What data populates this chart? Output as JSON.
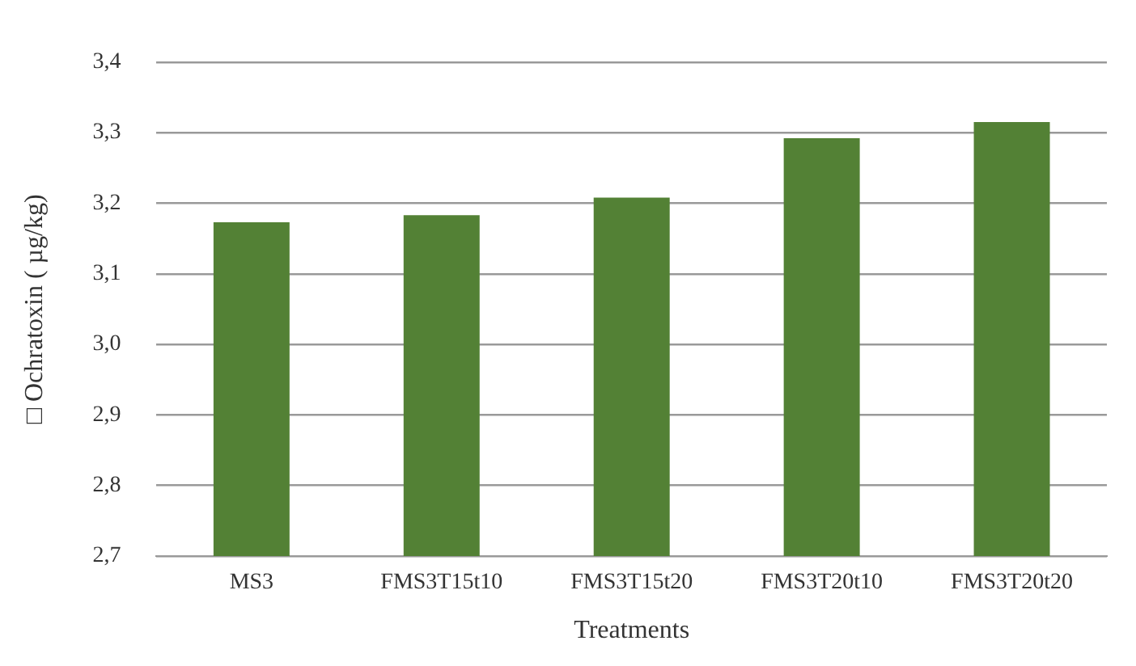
{
  "chart_data": {
    "type": "bar",
    "xlabel": "Treatments",
    "ylabel": "□ Ochratoxin ( µg/kg)",
    "categories": [
      "MS3",
      "FMS3T15t10",
      "FMS3T15t20",
      "FMS3T20t10",
      "FMS3T20t20"
    ],
    "values": [
      3.173,
      3.183,
      3.208,
      3.292,
      3.315
    ],
    "color": "#538135",
    "ylim": [
      2.7,
      3.4
    ],
    "yticks": [
      {
        "value": 2.7,
        "label": "2,7"
      },
      {
        "value": 2.8,
        "label": "2,8"
      },
      {
        "value": 2.9,
        "label": "2,9"
      },
      {
        "value": 3.0,
        "label": "3,0"
      },
      {
        "value": 3.1,
        "label": "3,1"
      },
      {
        "value": 3.2,
        "label": "3,2"
      },
      {
        "value": 3.3,
        "label": "3,3"
      },
      {
        "value": 3.4,
        "label": "3,4"
      }
    ],
    "grid": "y",
    "legend": false
  }
}
